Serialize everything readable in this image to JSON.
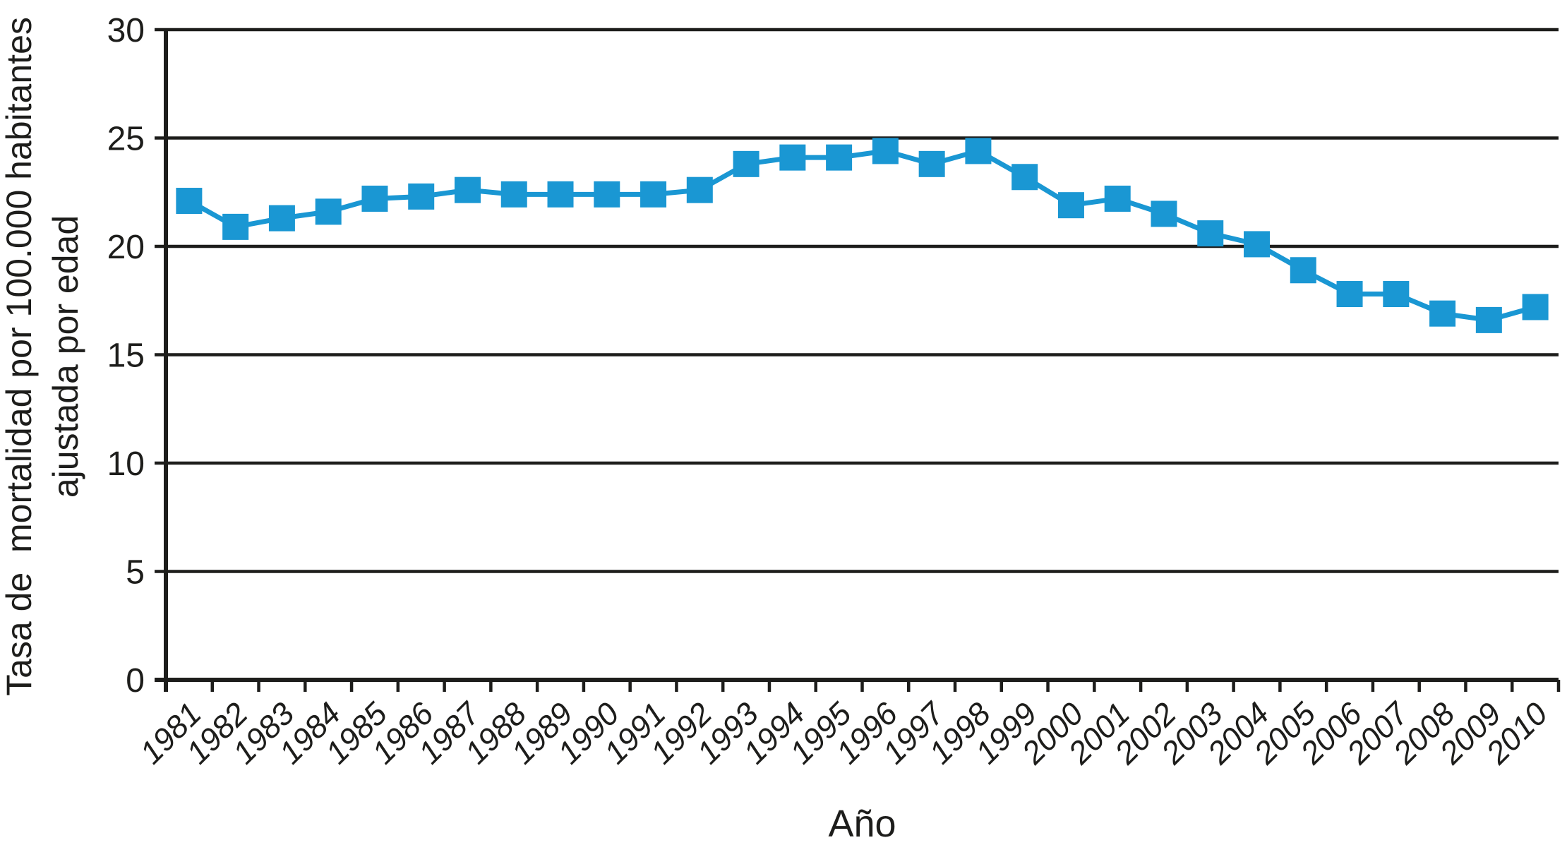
{
  "chart_data": {
    "type": "line",
    "title": "",
    "xlabel": "Año",
    "ylabel_line1": "Tasa de  mortalidad por 100.000 habitantes",
    "ylabel_line2": "ajustada por edad",
    "categories": [
      "1981",
      "1982",
      "1983",
      "1984",
      "1985",
      "1986",
      "1987",
      "1988",
      "1989",
      "1990",
      "1991",
      "1992",
      "1993",
      "1994",
      "1995",
      "1996",
      "1997",
      "1998",
      "1999",
      "2000",
      "2001",
      "2002",
      "2003",
      "2004",
      "2005",
      "2006",
      "2007",
      "2008",
      "2009",
      "2010"
    ],
    "series": [
      {
        "name": "Tasa de mortalidad ajustada por edad",
        "values": [
          22.1,
          20.9,
          21.3,
          21.6,
          22.2,
          22.3,
          22.6,
          22.4,
          22.4,
          22.4,
          22.4,
          22.6,
          23.8,
          24.1,
          24.1,
          24.4,
          23.8,
          24.4,
          23.2,
          21.9,
          22.2,
          21.5,
          20.6,
          20.1,
          18.9,
          17.8,
          17.8,
          16.9,
          16.6,
          17.2
        ]
      }
    ],
    "ylim": [
      0,
      30
    ],
    "yticks": [
      0,
      5,
      10,
      15,
      20,
      25,
      30
    ],
    "grid": true,
    "legend": "none",
    "marker": "square",
    "colors": {
      "line": "#1a97d3",
      "marker": "#1a97d3",
      "axis": "#1d1d1b",
      "background": "#ffffff"
    }
  }
}
